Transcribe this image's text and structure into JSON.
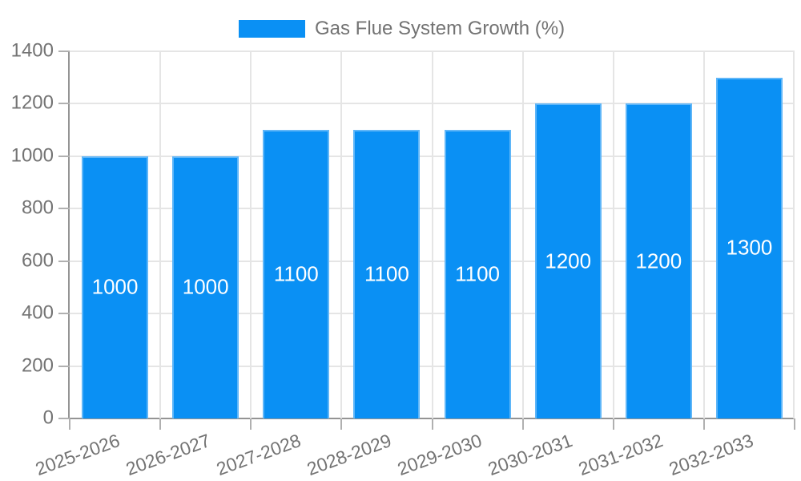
{
  "chart_data": {
    "type": "bar",
    "title": "",
    "legend": {
      "label": "Gas Flue System Growth (%)",
      "position": "top"
    },
    "categories": [
      "2025-2026",
      "2026-2027",
      "2027-2028",
      "2028-2029",
      "2029-2030",
      "2030-2031",
      "2031-2032",
      "2032-2033"
    ],
    "values": [
      1000,
      1000,
      1100,
      1100,
      1100,
      1200,
      1200,
      1300
    ],
    "bar_labels": [
      "1000",
      "1000",
      "1100",
      "1100",
      "1100",
      "1200",
      "1200",
      "1300"
    ],
    "xlabel": "",
    "ylabel": "",
    "ylim": [
      0,
      1400
    ],
    "yticks": [
      "0",
      "200",
      "400",
      "600",
      "800",
      "1000",
      "1200",
      "1400"
    ],
    "grid": true,
    "x_tick_rotation_deg": -20
  },
  "colors": {
    "bar": "#0a90f4",
    "bar_label": "#ffffff",
    "grid_line": "#e5e5e5",
    "axis_line": "#949494",
    "tick_mark": "#b0b0b0",
    "tick_label": "#737373",
    "legend_text": "#737373",
    "background": "#ffffff"
  }
}
